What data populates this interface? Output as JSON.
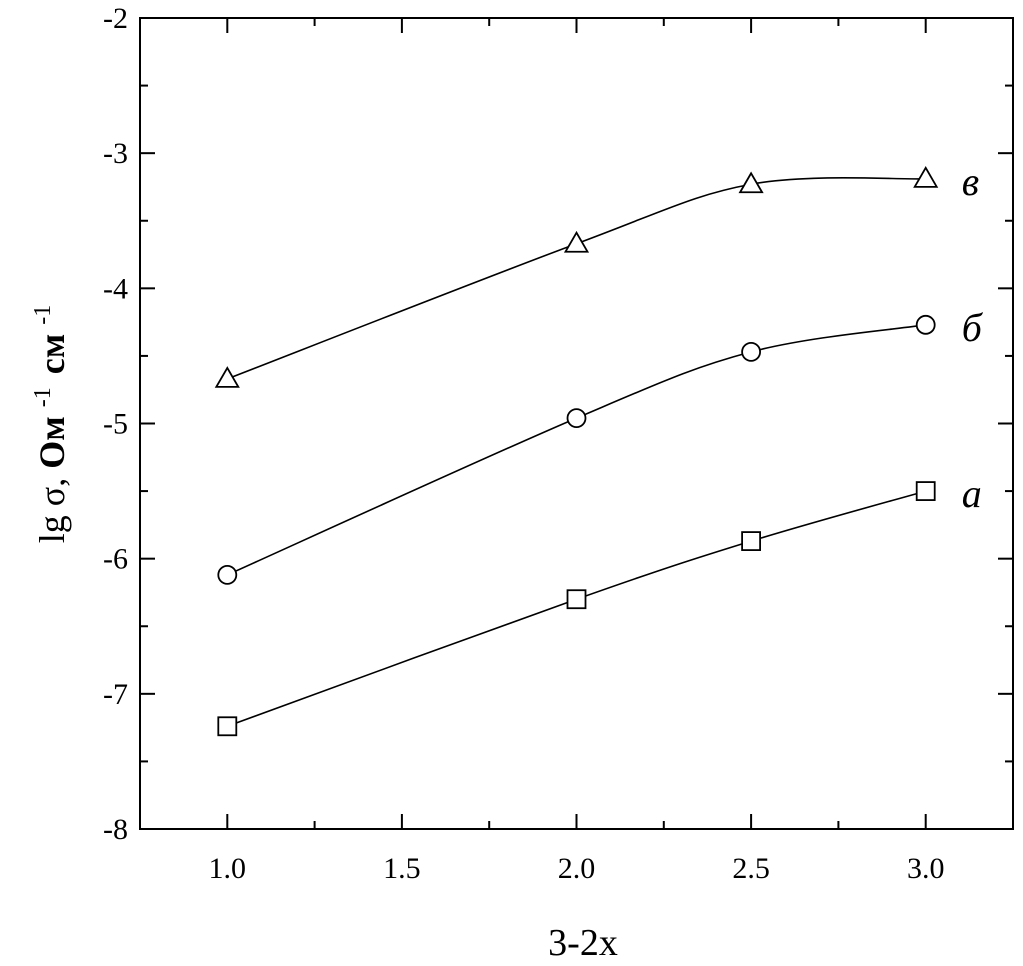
{
  "chart_data": {
    "type": "line",
    "title": "",
    "xlabel": "3-2x",
    "ylabel": {
      "prefix": "lg σ, ",
      "unit1": "Ом",
      "exp1": "-1",
      "unit2": "см",
      "exp2": "-1"
    },
    "xlim": [
      0.75,
      3.25
    ],
    "ylim": [
      -8,
      -2
    ],
    "x_ticks": [
      1.0,
      1.5,
      2.0,
      2.5,
      3.0
    ],
    "x_tick_labels": [
      "1.0",
      "1.5",
      "2.0",
      "2.5",
      "3.0"
    ],
    "y_ticks": [
      -8,
      -7,
      -6,
      -5,
      -4,
      -3,
      -2
    ],
    "y_tick_labels": [
      "-8",
      "-7",
      "-6",
      "-5",
      "-4",
      "-3",
      "-2"
    ],
    "grid": false,
    "legend": "none",
    "series": [
      {
        "name": "а",
        "marker": "square",
        "x": [
          1.0,
          2.0,
          2.5,
          3.0
        ],
        "y": [
          -7.24,
          -6.3,
          -5.87,
          -5.5
        ]
      },
      {
        "name": "б",
        "marker": "circle",
        "x": [
          1.0,
          2.0,
          2.5,
          3.0
        ],
        "y": [
          -6.12,
          -4.96,
          -4.47,
          -4.27
        ]
      },
      {
        "name": "в",
        "marker": "triangle",
        "x": [
          1.0,
          2.0,
          2.5,
          3.0
        ],
        "y": [
          -4.67,
          -3.67,
          -3.23,
          -3.19
        ]
      }
    ]
  }
}
